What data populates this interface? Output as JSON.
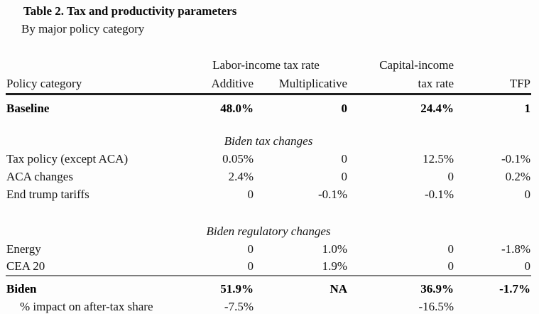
{
  "title": "Table 2. Tax and productivity parameters",
  "subtitle": "By major policy category",
  "colors": {
    "background": "#fdfdfd",
    "text": "#151515",
    "header_rule": "#1f1f1f",
    "total_rule": "#7d7d7d"
  },
  "table": {
    "header": {
      "labor_group": "Labor-income tax rate",
      "capital_line1": "Capital-income",
      "policy": "Policy category",
      "additive": "Additive",
      "multiplicative": "Multiplicative",
      "capital_line2": "tax rate",
      "tfp": "TFP"
    },
    "rows": [
      {
        "type": "baseline",
        "label": "Baseline",
        "additive": "48.0%",
        "multiplicative": "0",
        "capital": "24.4%",
        "tfp": "1"
      },
      {
        "type": "section",
        "label": "Biden tax changes"
      },
      {
        "type": "data",
        "label": "Tax policy (except ACA)",
        "additive": "0.05%",
        "multiplicative": "0",
        "capital": "12.5%",
        "tfp": "-0.1%"
      },
      {
        "type": "data",
        "label": "ACA changes",
        "additive": "2.4%",
        "multiplicative": "0",
        "capital": "0",
        "tfp": "0.2%"
      },
      {
        "type": "data",
        "label": "End trump tariffs",
        "additive": "0",
        "multiplicative": "-0.1%",
        "capital": "-0.1%",
        "tfp": "0"
      },
      {
        "type": "section",
        "label": "Biden regulatory changes"
      },
      {
        "type": "data",
        "label": "Energy",
        "additive": "0",
        "multiplicative": "1.0%",
        "capital": "0",
        "tfp": "-1.8%"
      },
      {
        "type": "data",
        "label": "CEA 20",
        "additive": "0",
        "multiplicative": "1.9%",
        "capital": "0",
        "tfp": "0"
      },
      {
        "type": "total",
        "label": "Biden",
        "additive": "51.9%",
        "multiplicative": "NA",
        "capital": "36.9%",
        "tfp": "-1.7%"
      },
      {
        "type": "subtotal",
        "label": "% impact on after-tax share",
        "additive": "-7.5%",
        "multiplicative": "",
        "capital": "-16.5%",
        "tfp": ""
      }
    ]
  }
}
